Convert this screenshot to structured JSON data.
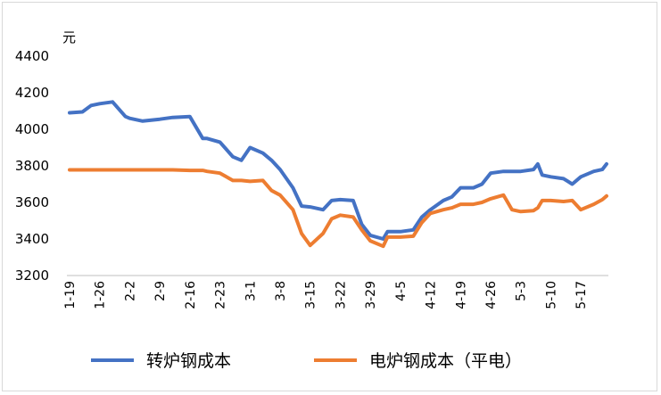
{
  "chart_data": {
    "type": "line",
    "unit_label": "元",
    "ylim": [
      3200,
      4400
    ],
    "yticks": [
      3200,
      3400,
      3600,
      3800,
      4000,
      4200,
      4400
    ],
    "xticks": [
      "1-19",
      "1-26",
      "2-2",
      "2-9",
      "2-16",
      "2-23",
      "3-1",
      "3-8",
      "3-15",
      "3-22",
      "3-29",
      "4-5",
      "4-12",
      "4-19",
      "4-26",
      "5-3",
      "5-10",
      "5-17"
    ],
    "grid": false,
    "legend_position": "bottom",
    "x": [
      "1-19",
      "1-22",
      "1-24",
      "1-26",
      "1-29",
      "2-1",
      "2-2",
      "2-5",
      "2-9",
      "2-12",
      "2-16",
      "2-19",
      "2-20",
      "2-23",
      "2-26",
      "2-28",
      "3-1",
      "3-4",
      "3-6",
      "3-8",
      "3-11",
      "3-13",
      "3-15",
      "3-18",
      "3-20",
      "3-22",
      "3-25",
      "3-27",
      "3-29",
      "4-1",
      "4-2",
      "4-5",
      "4-8",
      "4-10",
      "4-12",
      "4-15",
      "4-17",
      "4-19",
      "4-22",
      "4-24",
      "4-26",
      "4-29",
      "5-1",
      "5-3",
      "5-6",
      "5-7",
      "5-8",
      "5-10",
      "5-13",
      "5-15",
      "5-17",
      "5-20",
      "5-22",
      "5-23"
    ],
    "series": [
      {
        "name": "转炉钢成本",
        "color": "#4472C4",
        "values": [
          4090,
          4095,
          4130,
          4140,
          4150,
          4070,
          4060,
          4045,
          4055,
          4065,
          4070,
          3950,
          3950,
          3930,
          3850,
          3830,
          3900,
          3870,
          3830,
          3780,
          3680,
          3580,
          3575,
          3560,
          3610,
          3615,
          3610,
          3480,
          3420,
          3400,
          3440,
          3440,
          3450,
          3520,
          3560,
          3610,
          3630,
          3680,
          3680,
          3700,
          3760,
          3770,
          3770,
          3770,
          3780,
          3810,
          3750,
          3740,
          3730,
          3700,
          3740,
          3770,
          3780,
          3810
        ]
      },
      {
        "name": "电炉钢成本（平电）",
        "color": "#ED7D31",
        "values": [
          3778,
          3778,
          3778,
          3778,
          3778,
          3778,
          3778,
          3778,
          3778,
          3778,
          3775,
          3775,
          3770,
          3760,
          3720,
          3720,
          3715,
          3720,
          3665,
          3640,
          3560,
          3430,
          3365,
          3430,
          3510,
          3530,
          3520,
          3450,
          3390,
          3360,
          3410,
          3410,
          3415,
          3490,
          3540,
          3560,
          3570,
          3590,
          3590,
          3600,
          3620,
          3640,
          3560,
          3550,
          3555,
          3570,
          3610,
          3610,
          3605,
          3610,
          3560,
          3590,
          3615,
          3635
        ]
      }
    ]
  }
}
